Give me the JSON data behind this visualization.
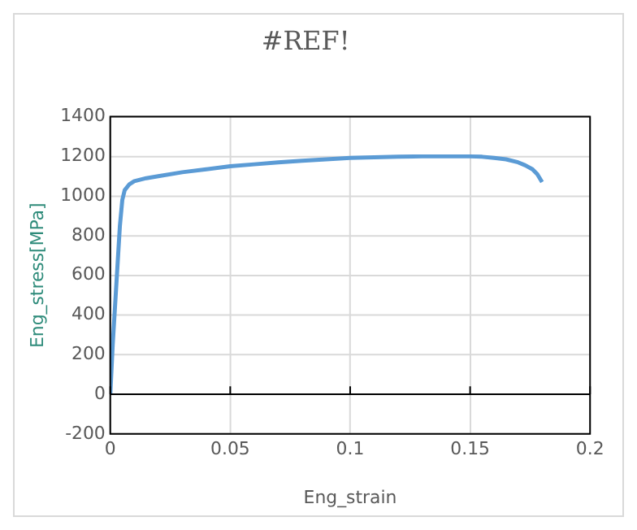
{
  "chart_data": {
    "type": "line",
    "title": "#REF!",
    "xlabel": "Eng_strain",
    "ylabel": "Eng_stress[MPa]",
    "xlim": [
      0,
      0.2
    ],
    "xticks": [
      0,
      0.05,
      0.1,
      0.15,
      0.2
    ],
    "ylim": [
      -200,
      1400
    ],
    "yticks": [
      -200,
      0,
      200,
      400,
      600,
      800,
      1000,
      1200,
      1400
    ],
    "grid": true,
    "legend": false,
    "marker": "none",
    "line_style": "solid",
    "series": [
      {
        "color": "#5b9bd5",
        "x": [
          0,
          0.001,
          0.002,
          0.003,
          0.004,
          0.005,
          0.006,
          0.008,
          0.01,
          0.015,
          0.02,
          0.03,
          0.04,
          0.05,
          0.06,
          0.07,
          0.08,
          0.09,
          0.1,
          0.11,
          0.12,
          0.13,
          0.14,
          0.15,
          0.155,
          0.16,
          0.165,
          0.17,
          0.173,
          0.176,
          0.178,
          0.18
        ],
        "values": [
          0,
          250,
          450,
          650,
          850,
          980,
          1030,
          1060,
          1075,
          1090,
          1100,
          1120,
          1135,
          1150,
          1160,
          1170,
          1178,
          1185,
          1192,
          1195,
          1198,
          1200,
          1200,
          1200,
          1198,
          1192,
          1185,
          1170,
          1155,
          1135,
          1110,
          1070
        ]
      }
    ]
  }
}
